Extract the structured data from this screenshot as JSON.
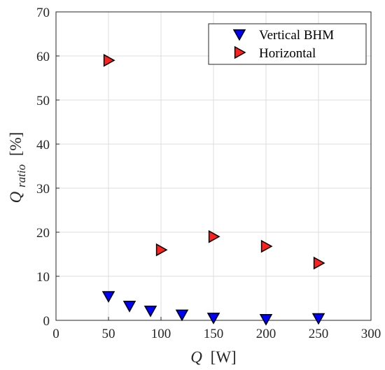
{
  "chart_data": {
    "type": "scatter",
    "xlabel": {
      "main": "Q",
      "unit": "[W]"
    },
    "ylabel": {
      "main": "Q",
      "sub": "ratio",
      "unit": "[%]"
    },
    "xlim": [
      0,
      300
    ],
    "ylim": [
      0,
      70
    ],
    "xticks": [
      0,
      50,
      100,
      150,
      200,
      250,
      300
    ],
    "yticks": [
      0,
      10,
      20,
      30,
      40,
      50,
      60,
      70
    ],
    "grid": true,
    "legend_position": "top-right",
    "series": [
      {
        "name": "Vertical BHM",
        "marker": "triangle-down",
        "color": "#0000ff",
        "points": [
          [
            50,
            5.5
          ],
          [
            70,
            3.3
          ],
          [
            90,
            2.2
          ],
          [
            120,
            1.3
          ],
          [
            150,
            0.6
          ],
          [
            200,
            0.3
          ],
          [
            250,
            0.5
          ]
        ]
      },
      {
        "name": "Horizontal",
        "marker": "triangle-right",
        "color": "#ff2020",
        "points": [
          [
            50,
            59
          ],
          [
            100,
            16
          ],
          [
            150,
            19
          ],
          [
            200,
            16.8
          ],
          [
            250,
            13
          ]
        ]
      }
    ]
  }
}
